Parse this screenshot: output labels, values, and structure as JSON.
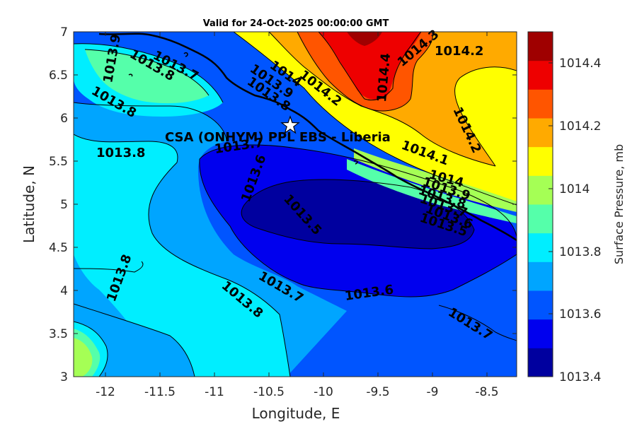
{
  "title": "Valid for 24-Oct-2025 00:00:00 GMT",
  "x_axis": {
    "label": "Longitude, E",
    "ticks": [
      "-12",
      "-11.5",
      "-11",
      "-10.5",
      "-10",
      "-9.5",
      "-9",
      "-8.5"
    ]
  },
  "y_axis": {
    "label": "Latitude, N",
    "ticks": [
      "3",
      "3.5",
      "4",
      "4.5",
      "5",
      "5.5",
      "6",
      "6.5",
      "7"
    ]
  },
  "colorbar": {
    "label": "Surface Pressure, mb",
    "ticks": [
      "1013.4",
      "1013.6",
      "1013.8",
      "1014",
      "1014.2",
      "1014.4"
    ],
    "colors": [
      "#00009f",
      "#0000ee",
      "#0055ff",
      "#00a5ff",
      "#00eeff",
      "#55ffaa",
      "#a5ff55",
      "#ffff00",
      "#ffaa00",
      "#ff5500",
      "#ee0000",
      "#9f0000"
    ]
  },
  "site": {
    "label": "CSA (ONHYM) PPL EBS  - Liberia",
    "marker": "star-marker"
  },
  "contour_labels": [
    "1013.9",
    "1013.8",
    "1013.7",
    "1013.8",
    "1014",
    "1013.9",
    "1013.8",
    "1014.2",
    "1014.4",
    "1014.3",
    "1014.2",
    "1013.8",
    "1013.7",
    "1013.6",
    "1014.1",
    "1014.2",
    "1014",
    "1013.9",
    "1013.8",
    "1013.7",
    "1013.6",
    "1013.5",
    "1013.5",
    "1013.8",
    "1013.7",
    "1013.8",
    "1013.6",
    "1013.7"
  ],
  "chart_data": {
    "type": "contour",
    "variable": "Surface Pressure, mb",
    "xlim": [
      -12.3,
      -8.25
    ],
    "ylim": [
      3,
      7
    ],
    "levels": [
      1013.4,
      1013.45,
      1013.5,
      1013.55,
      1013.6,
      1013.65,
      1013.7,
      1013.75,
      1013.8,
      1013.85,
      1013.9,
      1013.95,
      1014,
      1014.05,
      1014.1,
      1014.15,
      1014.2,
      1014.25,
      1014.3,
      1014.35,
      1014.4,
      1014.45,
      1014.5
    ],
    "site": {
      "lon": -10.28,
      "lat": 5.92
    }
  }
}
